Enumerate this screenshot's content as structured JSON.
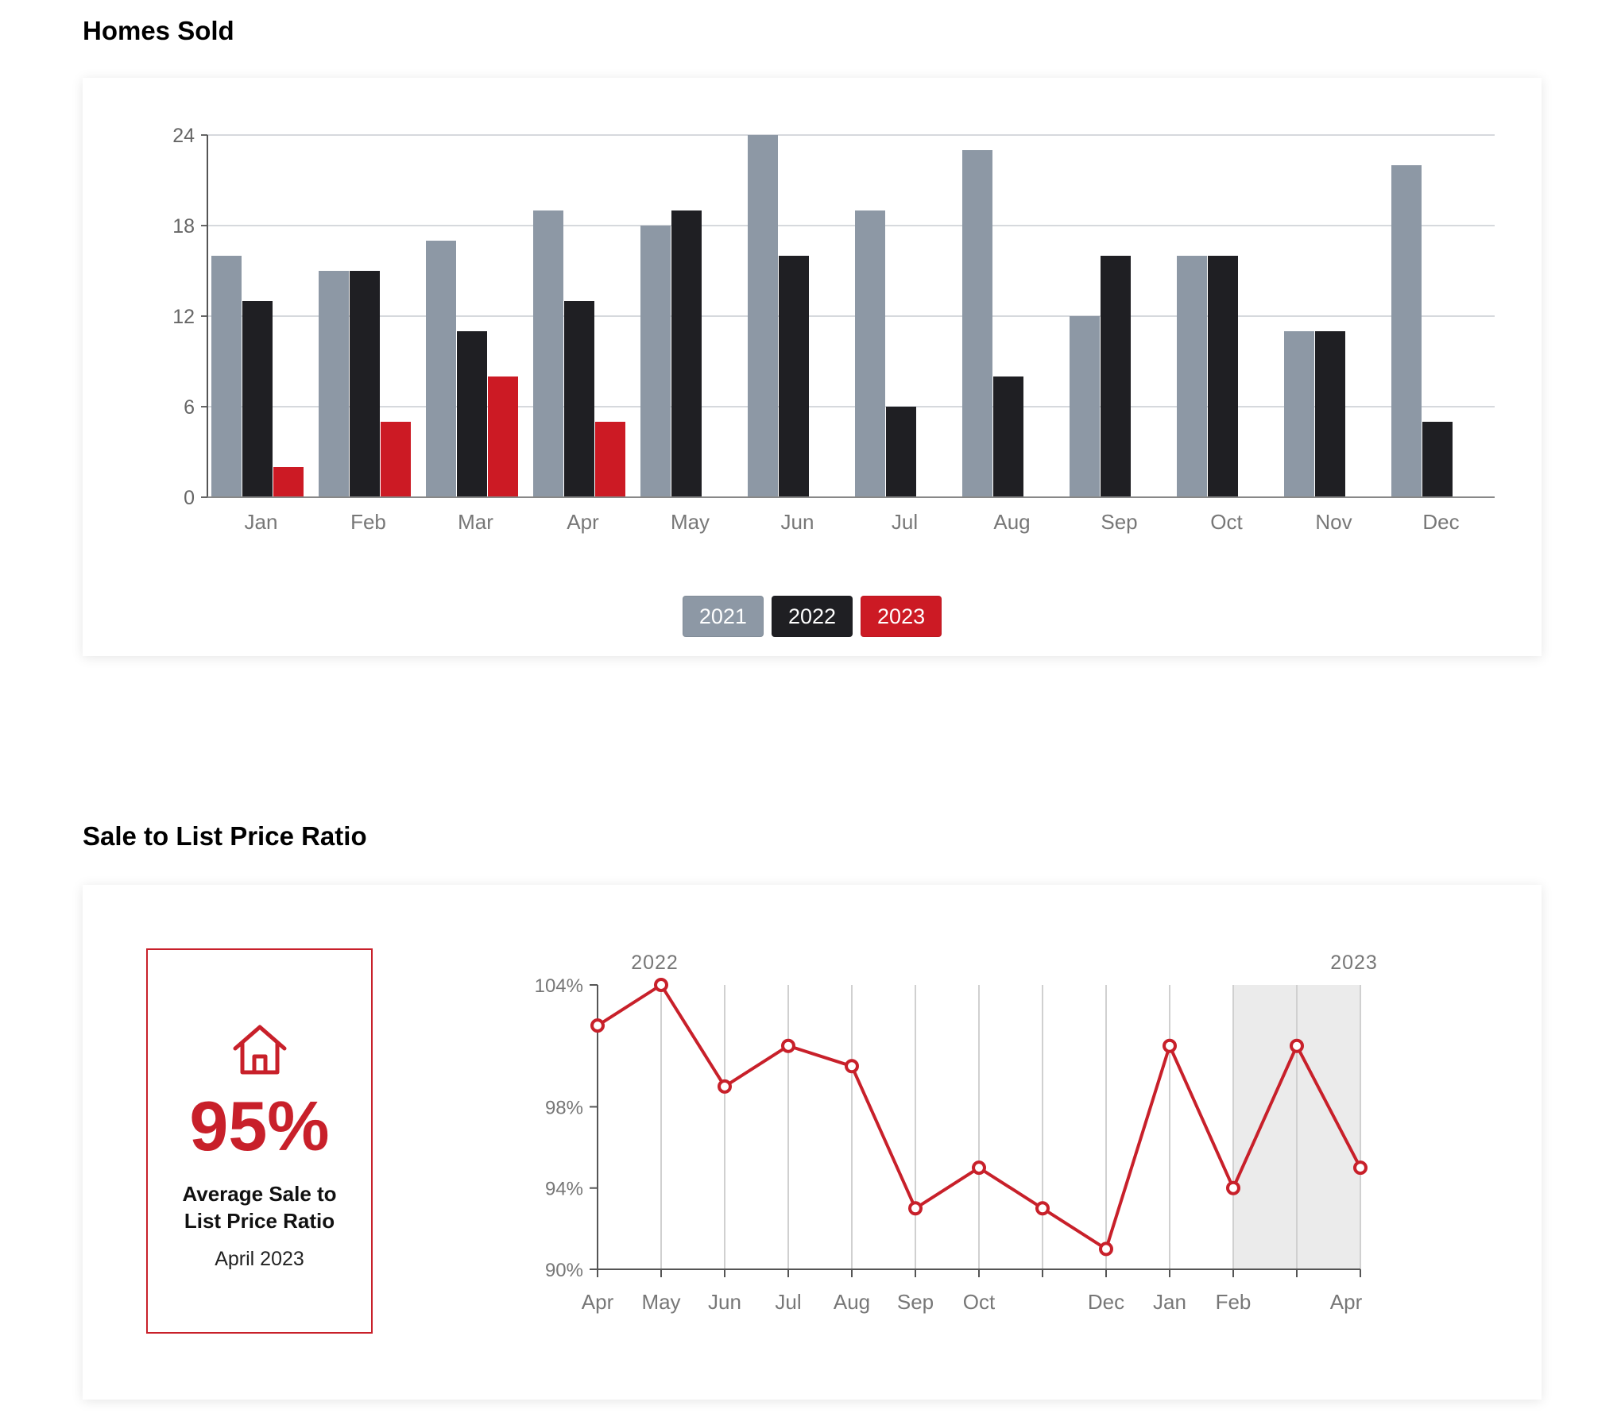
{
  "sections": {
    "homes_sold_title": "Homes Sold",
    "ratio_title": "Sale to List Price Ratio"
  },
  "kpi": {
    "icon": "house-icon",
    "value": "95%",
    "label": "Average Sale to List Price Ratio",
    "date": "April 2023"
  },
  "colors": {
    "series_2021": "#8d98a5",
    "series_2022": "#1f1f23",
    "series_2023": "#cc1a24",
    "accent": "#c8202a",
    "highlight_band": "#ebebeb"
  },
  "chart_data": [
    {
      "type": "bar",
      "title": "Homes Sold",
      "categories": [
        "Jan",
        "Feb",
        "Mar",
        "Apr",
        "May",
        "Jun",
        "Jul",
        "Aug",
        "Sep",
        "Oct",
        "Nov",
        "Dec"
      ],
      "series": [
        {
          "name": "2021",
          "values": [
            16,
            15,
            17,
            19,
            18,
            24,
            19,
            23,
            12,
            16,
            11,
            22
          ]
        },
        {
          "name": "2022",
          "values": [
            13,
            15,
            11,
            13,
            19,
            16,
            6,
            8,
            16,
            16,
            11,
            5
          ]
        },
        {
          "name": "2023",
          "values": [
            2,
            5,
            8,
            5,
            null,
            null,
            null,
            null,
            null,
            null,
            null,
            null
          ]
        }
      ],
      "yticks": [
        0,
        6,
        12,
        18,
        24
      ],
      "ylim": [
        0,
        24
      ],
      "grid": true,
      "legend_position": "bottom-center"
    },
    {
      "type": "line",
      "title": "Sale to List Price Ratio",
      "x": [
        "Apr",
        "May",
        "Jun",
        "Jul",
        "Aug",
        "Sep",
        "Oct",
        "Nov",
        "Dec",
        "Jan",
        "Feb",
        "Mar",
        "Apr"
      ],
      "x_tick_labels": [
        "Apr",
        "May",
        "Jun",
        "Jul",
        "Aug",
        "Sep",
        "Oct",
        "",
        "Dec",
        "Jan",
        "Feb",
        "",
        "Apr"
      ],
      "year_labels": [
        {
          "label": "2022",
          "at": "May"
        },
        {
          "label": "2023",
          "at": "Apr"
        }
      ],
      "series": [
        {
          "values": [
            102,
            104,
            99,
            101,
            100,
            93,
            95,
            93,
            91,
            101,
            94,
            101,
            95
          ]
        }
      ],
      "yticks": [
        90,
        94,
        98,
        104
      ],
      "ytick_labels": [
        "90%",
        "94%",
        "98%",
        "104%"
      ],
      "ylim": [
        90,
        104
      ],
      "highlight_range": [
        "Feb",
        "Apr"
      ],
      "grid": "vertical"
    }
  ]
}
